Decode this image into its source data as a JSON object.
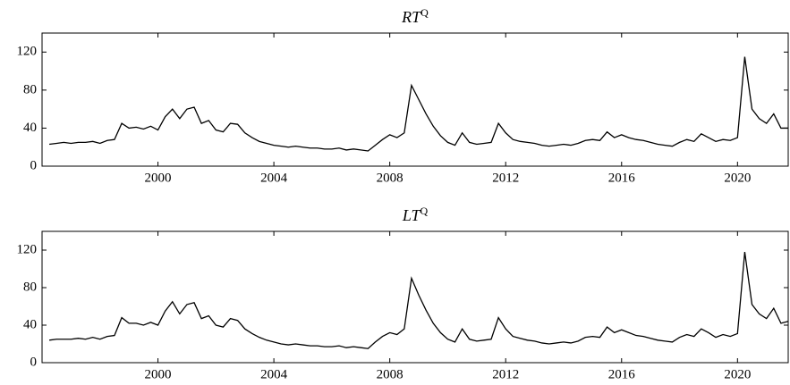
{
  "chart_data": [
    {
      "type": "line",
      "title": "RT",
      "title_sup": "Q",
      "x": [
        1996.25,
        1996.5,
        1996.75,
        1997,
        1997.25,
        1997.5,
        1997.75,
        1998,
        1998.25,
        1998.5,
        1998.75,
        1999,
        1999.25,
        1999.5,
        1999.75,
        2000,
        2000.25,
        2000.5,
        2000.75,
        2001,
        2001.25,
        2001.5,
        2001.75,
        2002,
        2002.25,
        2002.5,
        2002.75,
        2003,
        2003.25,
        2003.5,
        2003.75,
        2004,
        2004.25,
        2004.5,
        2004.75,
        2005,
        2005.25,
        2005.5,
        2005.75,
        2006,
        2006.25,
        2006.5,
        2006.75,
        2007,
        2007.25,
        2007.5,
        2007.75,
        2008,
        2008.25,
        2008.5,
        2008.75,
        2009,
        2009.25,
        2009.5,
        2009.75,
        2010,
        2010.25,
        2010.5,
        2010.75,
        2011,
        2011.25,
        2011.5,
        2011.75,
        2012,
        2012.25,
        2012.5,
        2012.75,
        2013,
        2013.25,
        2013.5,
        2013.75,
        2014,
        2014.25,
        2014.5,
        2014.75,
        2015,
        2015.25,
        2015.5,
        2015.75,
        2016,
        2016.25,
        2016.5,
        2016.75,
        2017,
        2017.25,
        2017.5,
        2017.75,
        2018,
        2018.25,
        2018.5,
        2018.75,
        2019,
        2019.25,
        2019.5,
        2019.75,
        2020,
        2020.25,
        2020.5,
        2020.75,
        2021,
        2021.25,
        2021.5,
        2021.75
      ],
      "series": [
        {
          "color": "#000000",
          "values": [
            23,
            24,
            25,
            24,
            25,
            25,
            26,
            24,
            27,
            28,
            45,
            40,
            41,
            39,
            42,
            38,
            52,
            60,
            50,
            60,
            62,
            45,
            48,
            38,
            36,
            45,
            44,
            35,
            30,
            26,
            24,
            22,
            21,
            20,
            21,
            20,
            19,
            19,
            18,
            18,
            19,
            17,
            18,
            17,
            16,
            22,
            28,
            33,
            30,
            35,
            85,
            70,
            55,
            42,
            32,
            25,
            22,
            35,
            25,
            23,
            24,
            25,
            45,
            35,
            28,
            26,
            25,
            24,
            22,
            21,
            22,
            23,
            22,
            24,
            27,
            28,
            27,
            36,
            30,
            33,
            30,
            28,
            27,
            25,
            23,
            22,
            21,
            25,
            28,
            26,
            34,
            30,
            26,
            28,
            27,
            30,
            115,
            60,
            50,
            45,
            55,
            40,
            40
          ]
        }
      ],
      "xlim": [
        1996,
        2021.75
      ],
      "ylim": [
        0,
        140
      ],
      "xticks": [
        2000,
        2004,
        2008,
        2012,
        2016,
        2020
      ],
      "yticks": [
        0,
        40,
        80,
        120
      ]
    },
    {
      "type": "line",
      "title": "LT",
      "title_sup": "Q",
      "x": [
        1996.25,
        1996.5,
        1996.75,
        1997,
        1997.25,
        1997.5,
        1997.75,
        1998,
        1998.25,
        1998.5,
        1998.75,
        1999,
        1999.25,
        1999.5,
        1999.75,
        2000,
        2000.25,
        2000.5,
        2000.75,
        2001,
        2001.25,
        2001.5,
        2001.75,
        2002,
        2002.25,
        2002.5,
        2002.75,
        2003,
        2003.25,
        2003.5,
        2003.75,
        2004,
        2004.25,
        2004.5,
        2004.75,
        2005,
        2005.25,
        2005.5,
        2005.75,
        2006,
        2006.25,
        2006.5,
        2006.75,
        2007,
        2007.25,
        2007.5,
        2007.75,
        2008,
        2008.25,
        2008.5,
        2008.75,
        2009,
        2009.25,
        2009.5,
        2009.75,
        2010,
        2010.25,
        2010.5,
        2010.75,
        2011,
        2011.25,
        2011.5,
        2011.75,
        2012,
        2012.25,
        2012.5,
        2012.75,
        2013,
        2013.25,
        2013.5,
        2013.75,
        2014,
        2014.25,
        2014.5,
        2014.75,
        2015,
        2015.25,
        2015.5,
        2015.75,
        2016,
        2016.25,
        2016.5,
        2016.75,
        2017,
        2017.25,
        2017.5,
        2017.75,
        2018,
        2018.25,
        2018.5,
        2018.75,
        2019,
        2019.25,
        2019.5,
        2019.75,
        2020,
        2020.25,
        2020.5,
        2020.75,
        2021,
        2021.25,
        2021.5,
        2021.75
      ],
      "series": [
        {
          "color": "#000000",
          "values": [
            24,
            25,
            25,
            25,
            26,
            25,
            27,
            25,
            28,
            29,
            48,
            42,
            42,
            40,
            43,
            40,
            55,
            65,
            52,
            62,
            64,
            47,
            50,
            40,
            38,
            47,
            45,
            36,
            31,
            27,
            24,
            22,
            20,
            19,
            20,
            19,
            18,
            18,
            17,
            17,
            18,
            16,
            17,
            16,
            15,
            22,
            28,
            32,
            30,
            36,
            90,
            72,
            56,
            42,
            32,
            25,
            22,
            36,
            25,
            23,
            24,
            25,
            48,
            36,
            28,
            26,
            24,
            23,
            21,
            20,
            21,
            22,
            21,
            23,
            27,
            28,
            27,
            38,
            32,
            35,
            32,
            29,
            28,
            26,
            24,
            23,
            22,
            27,
            30,
            28,
            36,
            32,
            27,
            30,
            28,
            31,
            118,
            62,
            52,
            47,
            58,
            42,
            44
          ]
        }
      ],
      "xlim": [
        1996,
        2021.75
      ],
      "ylim": [
        0,
        140
      ],
      "xticks": [
        2000,
        2004,
        2008,
        2012,
        2016,
        2020
      ],
      "yticks": [
        0,
        40,
        80,
        120
      ]
    }
  ]
}
